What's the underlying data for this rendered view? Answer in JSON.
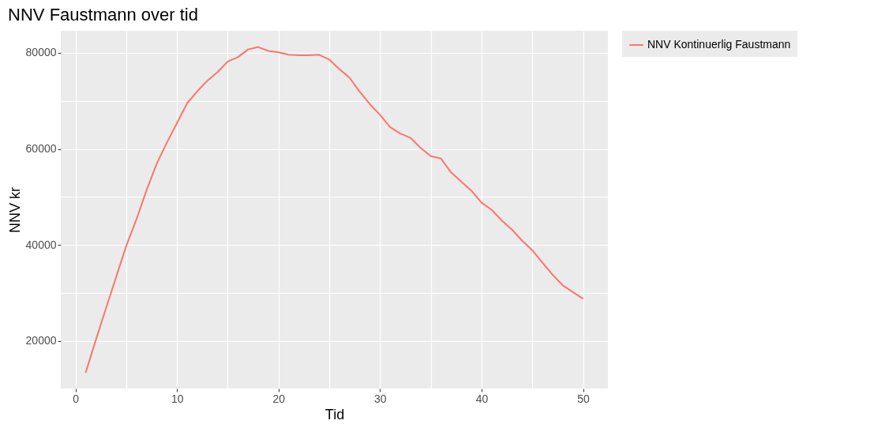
{
  "chart_data": {
    "type": "line",
    "title": "NNV Faustmann over tid",
    "xlabel": "Tid",
    "ylabel": "NNV kr",
    "x": [
      1,
      2,
      3,
      4,
      5,
      6,
      7,
      8,
      9,
      10,
      11,
      12,
      13,
      14,
      15,
      16,
      17,
      18,
      19,
      20,
      21,
      22,
      23,
      24,
      25,
      26,
      27,
      28,
      29,
      30,
      31,
      32,
      33,
      34,
      35,
      36,
      37,
      38,
      39,
      40,
      41,
      42,
      43,
      44,
      45,
      46,
      47,
      48,
      49,
      50
    ],
    "series": [
      {
        "name": "NNV Kontinuerlig Faustmann",
        "color": "#f8766d",
        "values": [
          13400,
          20200,
          26800,
          33300,
          39800,
          45300,
          51400,
          56900,
          61300,
          65400,
          69500,
          72000,
          74200,
          76000,
          78200,
          79100,
          80700,
          81200,
          80400,
          80100,
          79600,
          79500,
          79500,
          79600,
          78600,
          76600,
          74800,
          71900,
          69300,
          67100,
          64500,
          63200,
          62300,
          60200,
          58500,
          58000,
          55100,
          53200,
          51300,
          48800,
          47300,
          45100,
          43200,
          40900,
          38900,
          36300,
          33800,
          31600,
          30200,
          28800
        ]
      }
    ],
    "xlim": [
      -1.45,
      52.45
    ],
    "xticks": [
      0,
      {
        "value": 5,
        "label": null
      },
      10,
      {
        "value": 15,
        "label": null
      },
      20,
      {
        "value": 25,
        "label": null
      },
      30,
      {
        "value": 35,
        "label": null
      },
      40,
      {
        "value": 45,
        "label": null
      },
      50
    ],
    "ylim": [
      10115,
      84585
    ],
    "yticks": [
      20000,
      {
        "value": 30000,
        "label": null
      },
      40000,
      {
        "value": 50000,
        "label": null
      },
      60000,
      {
        "value": 70000,
        "label": null
      },
      80000
    ],
    "grid": true,
    "legend": "right",
    "marker": "none",
    "line_style": "solid"
  }
}
